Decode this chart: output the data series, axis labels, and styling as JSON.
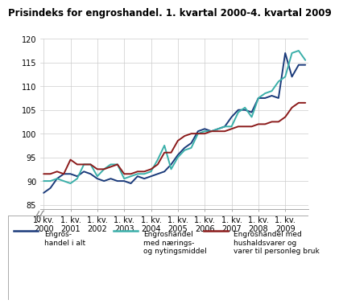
{
  "title": "Prisindeks for engroshandel. 1. kvartal 2000-4. kvartal 2009",
  "title_fontsize": 8.5,
  "background_color": "#ffffff",
  "grid_color": "#cccccc",
  "series": {
    "engros_alt": {
      "label1": "Engros-",
      "label2": "handel i alt",
      "color": "#1a3a7a",
      "linewidth": 1.4,
      "values": [
        87.5,
        88.5,
        90.5,
        91.5,
        91.5,
        91.0,
        92.0,
        91.5,
        90.5,
        90.0,
        90.5,
        90.0,
        90.0,
        89.5,
        91.0,
        90.5,
        91.0,
        91.5,
        92.0,
        93.5,
        95.5,
        97.0,
        98.0,
        100.5,
        101.0,
        100.5,
        101.0,
        101.5,
        103.5,
        105.0,
        105.0,
        104.5,
        107.5,
        107.5,
        108.0,
        107.5,
        117.0,
        112.0,
        114.5,
        114.5
      ]
    },
    "engros_naering": {
      "label1": "Engroshandel",
      "label2": "med nærings-",
      "label3": "og nytingsmiddel",
      "color": "#3aafa9",
      "linewidth": 1.4,
      "values": [
        90.0,
        90.0,
        90.5,
        90.0,
        89.5,
        90.5,
        93.5,
        93.5,
        91.0,
        92.5,
        93.5,
        93.5,
        90.5,
        91.0,
        91.5,
        91.5,
        92.0,
        94.5,
        97.5,
        92.5,
        95.0,
        96.5,
        97.0,
        100.0,
        100.5,
        100.5,
        101.0,
        101.5,
        101.5,
        104.5,
        105.5,
        103.5,
        107.5,
        108.5,
        109.0,
        111.0,
        112.0,
        117.0,
        117.5,
        115.5
      ]
    },
    "engros_hushald": {
      "label1": "Engroshandel med",
      "label2": "hushaldsvarer og",
      "label3": "varer til personleg bruk",
      "color": "#8b1a1a",
      "linewidth": 1.4,
      "values": [
        91.5,
        91.5,
        92.0,
        91.5,
        94.5,
        93.5,
        93.5,
        93.5,
        92.5,
        92.5,
        93.0,
        93.5,
        91.5,
        91.5,
        92.0,
        92.0,
        92.5,
        93.5,
        96.0,
        96.0,
        98.5,
        99.5,
        100.0,
        100.0,
        100.0,
        100.5,
        100.5,
        100.5,
        101.0,
        101.5,
        101.5,
        101.5,
        102.0,
        102.0,
        102.5,
        102.5,
        103.5,
        105.5,
        106.5,
        106.5
      ]
    }
  },
  "n_quarters": 40,
  "start_year": 2000,
  "x_tick_years": [
    2000,
    2001,
    2002,
    2003,
    2004,
    2005,
    2006,
    2007,
    2008,
    2009
  ],
  "yticks": [
    85,
    90,
    95,
    100,
    105,
    110,
    115,
    120
  ],
  "ylim_top": 120,
  "ylim_bottom": 84,
  "legend_fontsize": 6.5,
  "axis_fontsize": 7.0
}
